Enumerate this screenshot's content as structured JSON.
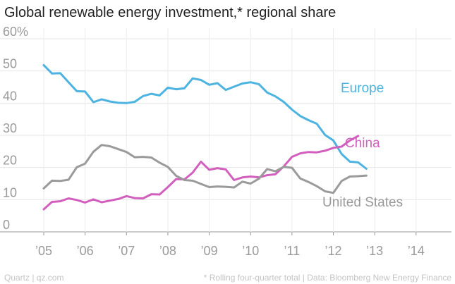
{
  "chart_data": {
    "type": "line",
    "title": "Global renewable energy investment,* regional share",
    "xlabel": "",
    "ylabel": "",
    "ylim": [
      0,
      60
    ],
    "yticks": [
      0,
      10,
      20,
      30,
      40,
      50,
      60
    ],
    "ytick_labels": [
      "0",
      "10",
      "20",
      "30",
      "40",
      "50",
      "60%"
    ],
    "xlim": [
      2005,
      2014.6
    ],
    "xticks": [
      2005,
      2006,
      2007,
      2008,
      2009,
      2010,
      2011,
      2012,
      2013,
      2014
    ],
    "xtick_labels": [
      "’05",
      "’06",
      "’07",
      "’08",
      "’09",
      "’10",
      "’11",
      "’12",
      "’13",
      "’14"
    ],
    "x": [
      2005.0,
      2005.2,
      2005.4,
      2005.6,
      2005.8,
      2006.0,
      2006.2,
      2006.4,
      2006.6,
      2006.8,
      2007.0,
      2007.2,
      2007.4,
      2007.6,
      2007.8,
      2008.0,
      2008.2,
      2008.4,
      2008.6,
      2008.8,
      2009.0,
      2009.2,
      2009.4,
      2009.6,
      2009.8,
      2010.0,
      2010.2,
      2010.4,
      2010.6,
      2010.8,
      2011.0,
      2011.2,
      2011.4,
      2011.6,
      2011.8,
      2012.0,
      2012.2,
      2012.4,
      2012.6,
      2012.8,
      2013.0,
      2013.2,
      2013.4,
      2013.6,
      2013.8,
      2014.0,
      2014.2,
      2014.45
    ],
    "series": [
      {
        "name": "Europe",
        "color": "#4db3e0",
        "values": [
          51.8,
          49.2,
          49.3,
          46.5,
          43.7,
          43.6,
          40.3,
          41.2,
          40.5,
          40.1,
          40.0,
          40.4,
          42.2,
          42.9,
          42.4,
          44.8,
          44.3,
          44.6,
          47.7,
          47.2,
          45.7,
          46.2,
          44.1,
          45.1,
          46.1,
          46.5,
          45.9,
          43.3,
          42.1,
          40.4,
          38.0,
          36.0,
          34.7,
          33.6,
          30.1,
          28.4,
          24.2,
          21.8,
          21.6,
          19.6,
          null,
          null,
          null,
          null,
          null,
          null,
          null,
          null
        ]
      },
      {
        "name": "China",
        "color": "#d25fbd",
        "values": [
          7.0,
          9.3,
          9.5,
          10.4,
          9.9,
          9.1,
          10.1,
          9.2,
          9.7,
          10.2,
          11.1,
          10.5,
          10.4,
          11.7,
          11.6,
          13.9,
          16.4,
          16.3,
          18.4,
          21.8,
          19.3,
          19.8,
          19.4,
          16.1,
          16.9,
          17.2,
          16.9,
          17.6,
          17.9,
          20.3,
          23.3,
          24.4,
          24.8,
          24.7,
          25.2,
          26.1,
          26.5,
          28.4,
          29.8,
          null,
          null,
          null,
          null,
          null,
          null,
          null,
          null,
          null
        ]
      },
      {
        "name": "United States",
        "color": "#9a9a9a",
        "values": [
          13.5,
          15.9,
          15.8,
          16.2,
          20.1,
          21.2,
          24.9,
          27.0,
          26.6,
          25.7,
          24.8,
          23.2,
          23.3,
          23.1,
          21.5,
          20.2,
          17.4,
          16.1,
          15.9,
          14.9,
          13.9,
          14.1,
          14.0,
          13.8,
          15.6,
          15.0,
          16.5,
          19.5,
          18.8,
          20.2,
          19.9,
          16.6,
          15.5,
          14.2,
          12.6,
          12.1,
          15.8,
          17.2,
          17.3,
          17.5,
          null,
          null,
          null,
          null,
          null,
          null,
          null,
          null
        ]
      }
    ],
    "annotations": [
      "Europe",
      "China",
      "United States"
    ]
  },
  "footer": {
    "left": "Quartz | qz.com",
    "right": "* Rolling four-quarter total | Data: Bloomberg New Energy Finance"
  }
}
